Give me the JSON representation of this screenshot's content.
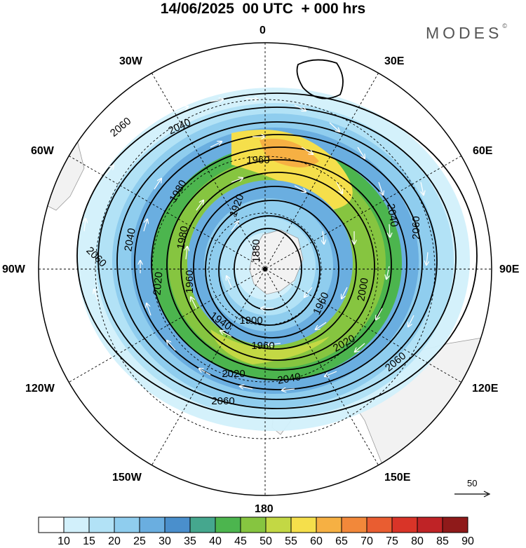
{
  "title": "14/06/2025  00 UTC  + 000 hrs",
  "brand": "MODES",
  "brand_mark": "©",
  "longitude_labels": {
    "lon_0": "0",
    "lon_30e": "30E",
    "lon_60e": "60E",
    "lon_90e": "90E",
    "lon_120e": "120E",
    "lon_150e": "150E",
    "lon_180": "180",
    "lon_150w": "150W",
    "lon_120w": "120W",
    "lon_90w": "90W",
    "lon_60w": "60W",
    "lon_30w": "30W"
  },
  "contour_labels": [
    "2060",
    "2040",
    "1960",
    "1980",
    "1920",
    "1880",
    "2060",
    "2040",
    "1980",
    "1960",
    "2020",
    "1900",
    "1940",
    "1960",
    "2020",
    "2040",
    "2060",
    "1960",
    "2000",
    "2020",
    "2040",
    "2060",
    "2060"
  ],
  "reference_vector": "50",
  "colorbar": {
    "labels": [
      "10",
      "15",
      "20",
      "25",
      "30",
      "35",
      "40",
      "45",
      "50",
      "55",
      "60",
      "65",
      "70",
      "75",
      "80",
      "85",
      "90"
    ],
    "colors": [
      "#ffffff",
      "#d2f0fb",
      "#b2e2f6",
      "#8fcdee",
      "#6aaee0",
      "#4a8fcc",
      "#45a78e",
      "#4cb54e",
      "#86c540",
      "#c3d844",
      "#f5df4b",
      "#f6b043",
      "#f2883a",
      "#e95d31",
      "#d93428",
      "#bf2326",
      "#8f1a1a"
    ]
  }
}
